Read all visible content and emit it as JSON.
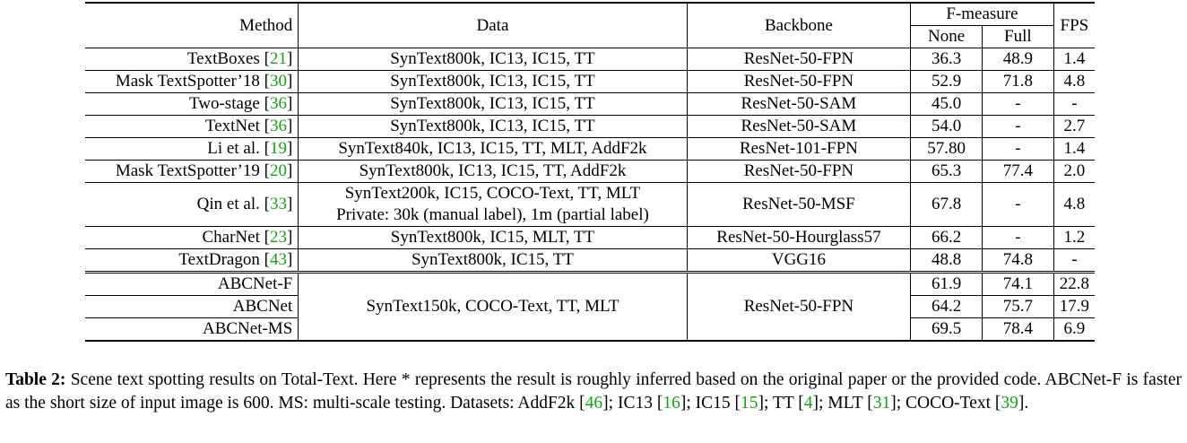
{
  "headers": {
    "method": "Method",
    "data": "Data",
    "backbone": "Backbone",
    "fmeasure": "F-measure",
    "none": "None",
    "full": "Full",
    "fps": "FPS"
  },
  "rows": [
    {
      "method": "TextBoxes ",
      "cite": "21",
      "data": "SynText800k, IC13, IC15, TT",
      "backbone": "ResNet-50-FPN",
      "none": "36.3",
      "full": "48.9",
      "fps": "1.4"
    },
    {
      "method": "Mask TextSpotter’18 ",
      "cite": "30",
      "data": "SynText800k, IC13, IC15, TT",
      "backbone": "ResNet-50-FPN",
      "none": "52.9",
      "full": "71.8",
      "fps": "4.8"
    },
    {
      "method": "Two-stage ",
      "cite": "36",
      "data": "SynText800k, IC13, IC15, TT",
      "backbone": "ResNet-50-SAM",
      "none": "45.0",
      "full": "-",
      "fps": "-"
    },
    {
      "method": "TextNet ",
      "cite": "36",
      "data": "SynText800k, IC13, IC15, TT",
      "backbone": "ResNet-50-SAM",
      "none": "54.0",
      "full": "-",
      "fps": "2.7"
    },
    {
      "method": "Li et al. ",
      "cite": "19",
      "data": "SynText840k, IC13, IC15, TT, MLT, AddF2k",
      "backbone": "ResNet-101-FPN",
      "none": "57.80",
      "full": "-",
      "fps": "1.4"
    },
    {
      "method": "Mask TextSpotter’19 ",
      "cite": "20",
      "data": "SynText800k, IC13, IC15, TT, AddF2k",
      "backbone": "ResNet-50-FPN",
      "none": "65.3",
      "full": "77.4",
      "fps": "2.0"
    },
    {
      "method": "Qin et al. ",
      "cite": "33",
      "data": "SynText200k, IC15, COCO-Text, TT, MLT",
      "data2": "Private: 30k (manual label), 1m (partial label)",
      "backbone": "ResNet-50-MSF",
      "none": "67.8",
      "full": "-",
      "fps": "4.8"
    },
    {
      "method": "CharNet ",
      "cite": "23",
      "data": "SynText800k, IC15, MLT, TT",
      "backbone": "ResNet-50-Hourglass57",
      "none": "66.2",
      "full": "-",
      "fps": "1.2"
    },
    {
      "method": "TextDragon ",
      "cite": "43",
      "data": "SynText800k, IC15, TT",
      "backbone": "VGG16",
      "none": "48.8",
      "full": "74.8",
      "fps": "-"
    }
  ],
  "ours": {
    "data": "SynText150k, COCO-Text, TT, MLT",
    "backbone": "ResNet-50-FPN",
    "rows": [
      {
        "method": "ABCNet-F",
        "none": "61.9",
        "full": "74.1",
        "fps": "22.8"
      },
      {
        "method": "ABCNet",
        "none": "64.2",
        "full": "75.7",
        "fps": "17.9"
      },
      {
        "method": "ABCNet-MS",
        "none": "69.5",
        "full": "78.4",
        "fps": "6.9"
      }
    ]
  },
  "caption": {
    "label": "Table 2:",
    "text1": " Scene text spotting results on Total-Text.  Here * represents the result is roughly inferred based on the original paper or the provided code. ABCNet-F is faster as the short size of input image is 600. MS: multi-scale testing. Datasets: AddF2k [",
    "c1": "46",
    "t2": "]; IC13 [",
    "c2": "16",
    "t3": "]; IC15 [",
    "c3": "15",
    "t4": "]; TT [",
    "c4": "4",
    "t5": "]; MLT [",
    "c5": "31",
    "t6": "]; COCO-Text [",
    "c6": "39",
    "t7": "]."
  }
}
